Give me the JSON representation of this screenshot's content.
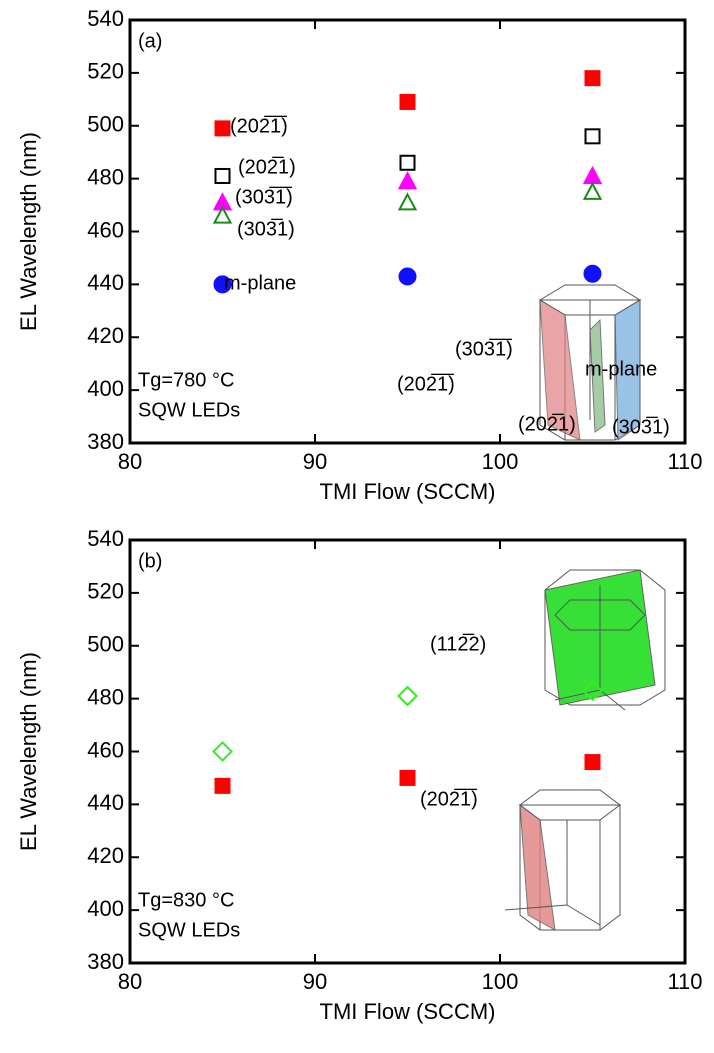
{
  "chart_data": [
    {
      "type": "scatter",
      "panel_label": "(a)",
      "xlabel": "TMI Flow (SCCM)",
      "ylabel": "EL Wavelength (nm)",
      "annotations": [
        "Tg=780 °C",
        "SQW LEDs"
      ],
      "x": [
        85,
        95,
        105
      ],
      "xlim": [
        80,
        110
      ],
      "xticks": [
        80,
        90,
        100,
        110
      ],
      "ylim": [
        380,
        540
      ],
      "yticks": [
        380,
        400,
        420,
        440,
        460,
        480,
        500,
        520,
        540
      ],
      "series": [
        {
          "name": "(202̅1̅)",
          "color": "#ff0000",
          "marker": "square",
          "filled": true,
          "values": [
            499,
            509,
            518
          ]
        },
        {
          "name": "(202̅1)",
          "color": "#000000",
          "marker": "square",
          "filled": false,
          "values": [
            481,
            486,
            496
          ]
        },
        {
          "name": "(303̅1̅)",
          "color": "#ff00ff",
          "marker": "triangle",
          "filled": true,
          "values": [
            471,
            479,
            481
          ]
        },
        {
          "name": "(303̅1)",
          "color": "#1a8a1a",
          "marker": "triangle",
          "filled": false,
          "values": [
            466,
            471,
            475
          ]
        },
        {
          "name": "m-plane",
          "color": "#1010ff",
          "marker": "circle",
          "filled": true,
          "values": [
            440,
            443,
            444
          ]
        }
      ]
    },
    {
      "type": "scatter",
      "panel_label": "(b)",
      "xlabel": "TMI Flow (SCCM)",
      "ylabel": "EL Wavelength (nm)",
      "annotations": [
        "Tg=830 °C",
        "SQW LEDs"
      ],
      "x": [
        85,
        95,
        105
      ],
      "xlim": [
        80,
        110
      ],
      "xticks": [
        80,
        90,
        100,
        110
      ],
      "ylim": [
        380,
        540
      ],
      "yticks": [
        380,
        400,
        420,
        440,
        460,
        480,
        500,
        520,
        540
      ],
      "series": [
        {
          "name": "(112̅2)",
          "color": "#33ee22",
          "marker": "diamond",
          "filled": false,
          "values": [
            460,
            481,
            483
          ]
        },
        {
          "name": "(202̅1̅)",
          "color": "#ff0000",
          "marker": "square",
          "filled": true,
          "values": [
            447,
            450,
            456
          ]
        }
      ]
    }
  ]
}
